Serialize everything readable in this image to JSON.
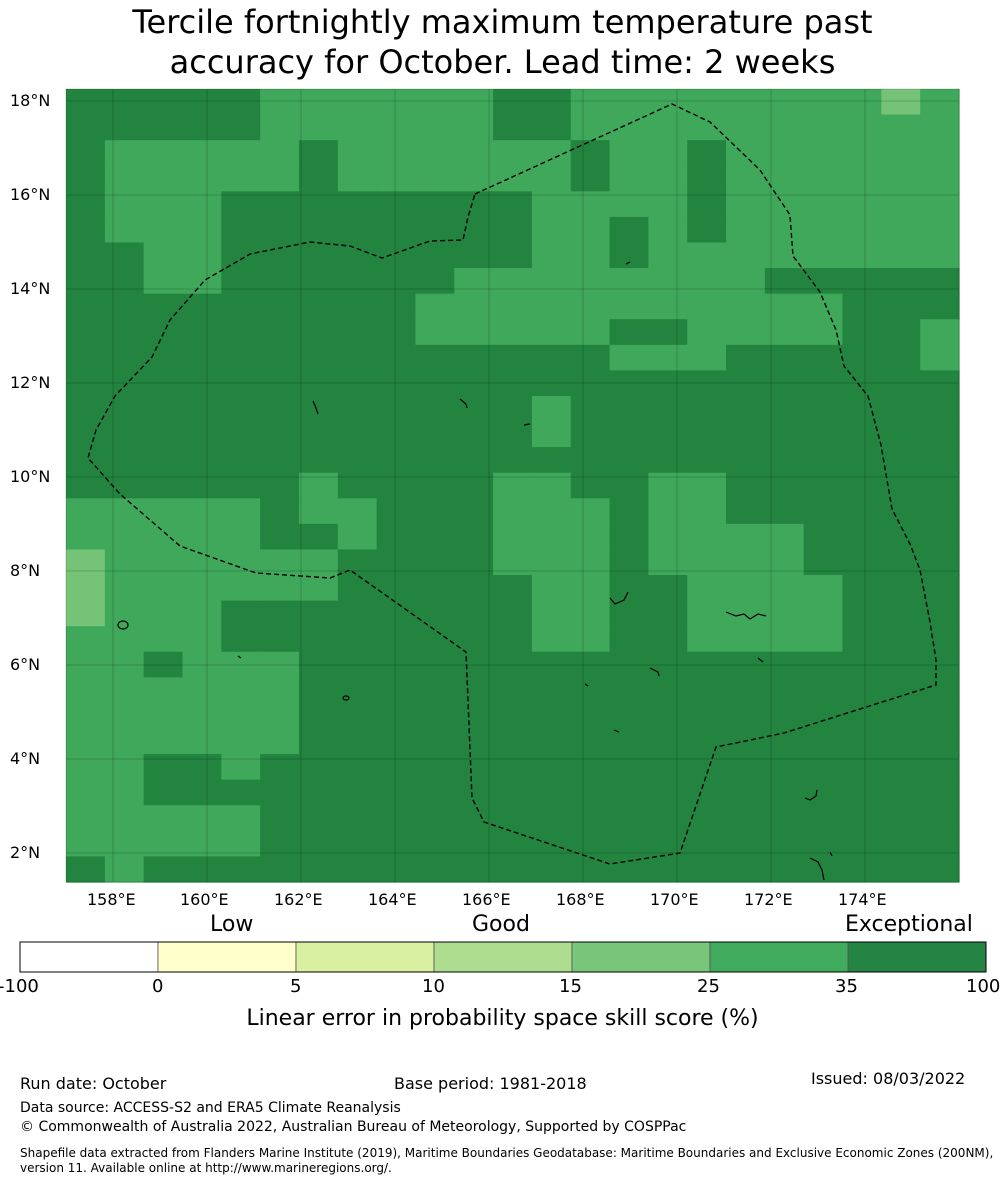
{
  "title_line1": "Tercile fortnightly maximum temperature past",
  "title_line2": "accuracy for October. Lead time: 2 weeks",
  "map": {
    "lat_labels": [
      "18°N",
      "16°N",
      "14°N",
      "12°N",
      "10°N",
      "8°N",
      "6°N",
      "4°N",
      "2°N"
    ],
    "lon_labels": [
      "158°E",
      "160°E",
      "162°E",
      "164°E",
      "166°E",
      "168°E",
      "170°E",
      "172°E",
      "174°E"
    ],
    "colors": {
      "dark": "#22843f",
      "mid": "#3fa85a",
      "light": "#74c376",
      "boundary": "#000000"
    }
  },
  "colorbar": {
    "categories": [
      "Low",
      "Good",
      "Exceptional"
    ],
    "ticks": [
      "-100",
      "0",
      "5",
      "10",
      "15",
      "25",
      "35",
      "100"
    ],
    "colors": [
      "#ffffff",
      "#ffffcc",
      "#d9f0a3",
      "#addd8e",
      "#78c679",
      "#41ab5d",
      "#238443"
    ],
    "label": "Linear error in probability space skill score (%)"
  },
  "footer": {
    "run_date": "Run date: October",
    "base_period": "Base period: 1981-2018",
    "issued": "Issued: 08/03/2022",
    "data_source": "Data source: ACCESS-S2 and ERA5 Climate Reanalysis",
    "copyright": "© Commonwealth of Australia 2022, Australian Bureau of Meteorology, Supported by COSPPac",
    "shapefile": "Shapefile data extracted from Flanders Marine Institute (2019), Maritime Boundaries Geodatabase: Maritime Boundaries and Exclusive Economic Zones (200NM), version 11. Available online at http://www.marineregions.org/."
  }
}
